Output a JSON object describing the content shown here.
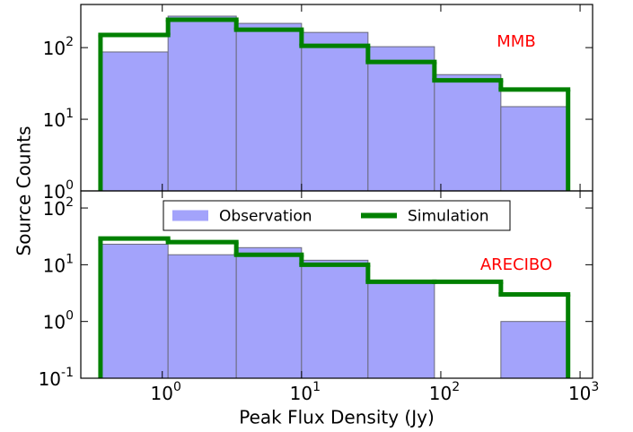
{
  "chart_data": [
    {
      "type": "histogram",
      "annotation": "MMB",
      "annotation_color": "#ff0000",
      "ylabel": "Source Counts",
      "xscale": "log",
      "yscale": "log",
      "bins": [
        0.36,
        1.1,
        3.4,
        10,
        30,
        90,
        270,
        820
      ],
      "series": [
        {
          "name": "Observation",
          "style": "bar",
          "color": "#a3a3fb",
          "values": [
            87,
            275,
            218,
            163,
            103,
            42,
            15
          ]
        },
        {
          "name": "Simulation",
          "style": "step",
          "color": "#008000",
          "values": [
            150,
            245,
            178,
            106,
            63,
            35,
            26
          ]
        }
      ],
      "xlim": [
        0.26,
        1230
      ],
      "ylim": [
        1,
        400
      ],
      "yticks": [
        {
          "value": 1,
          "label": "10^0"
        },
        {
          "value": 10,
          "label": "10^1"
        },
        {
          "value": 100,
          "label": "10^2"
        }
      ]
    },
    {
      "type": "histogram",
      "annotation": "ARECIBO",
      "annotation_color": "#ff0000",
      "xlabel": "Peak Flux Density (Jy)",
      "xscale": "log",
      "yscale": "log",
      "legend": "upper center",
      "bins": [
        0.36,
        1.1,
        3.4,
        10,
        30,
        90,
        270,
        820
      ],
      "series": [
        {
          "name": "Observation",
          "style": "bar",
          "color": "#a3a3fb",
          "values": [
            23,
            15,
            20,
            12,
            5,
            null,
            1
          ]
        },
        {
          "name": "Simulation",
          "style": "step",
          "color": "#008000",
          "values": [
            29,
            25,
            15,
            10,
            5,
            5,
            3
          ]
        }
      ],
      "xlim": [
        0.26,
        1230
      ],
      "ylim": [
        0.1,
        200
      ],
      "xticks": [
        {
          "value": 1,
          "label": "10^0"
        },
        {
          "value": 10,
          "label": "10^1"
        },
        {
          "value": 100,
          "label": "10^2"
        },
        {
          "value": 1000,
          "label": "10^3"
        }
      ],
      "yticks": [
        {
          "value": 0.1,
          "label": "10^-1"
        },
        {
          "value": 1,
          "label": "10^0"
        },
        {
          "value": 10,
          "label": "10^1"
        },
        {
          "value": 100,
          "label": "10^2"
        }
      ]
    }
  ]
}
